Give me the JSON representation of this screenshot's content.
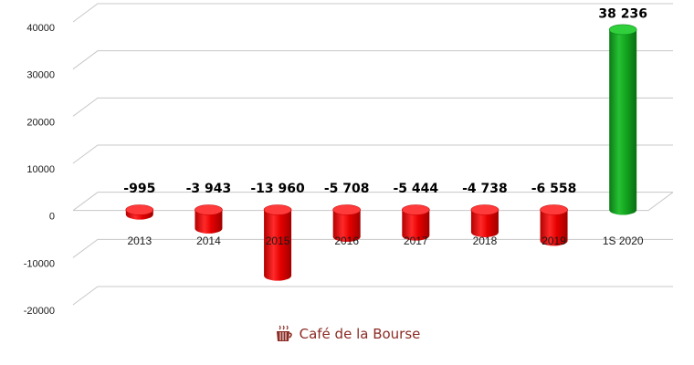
{
  "chart_data": {
    "type": "bar",
    "categories": [
      "2013",
      "2014",
      "2015",
      "2016",
      "2017",
      "2018",
      "2019",
      "1S 2020"
    ],
    "values": [
      -995,
      -3943,
      -13960,
      -5708,
      -5444,
      -4738,
      -6558,
      38236
    ],
    "data_labels": [
      "-995",
      "-3 943",
      "-13 960",
      "-5 708",
      "-5 444",
      "-4 738",
      "-6 558",
      "38 236"
    ],
    "yticks": [
      40000,
      30000,
      20000,
      10000,
      0,
      -10000,
      -20000
    ],
    "ylim": [
      -20000,
      40000
    ],
    "grid": true,
    "colors": {
      "negative": "#e00000",
      "positive": "#13a01f"
    }
  },
  "brand": {
    "name": "Café de la Bourse",
    "icon": "coffee-cup-icon"
  }
}
